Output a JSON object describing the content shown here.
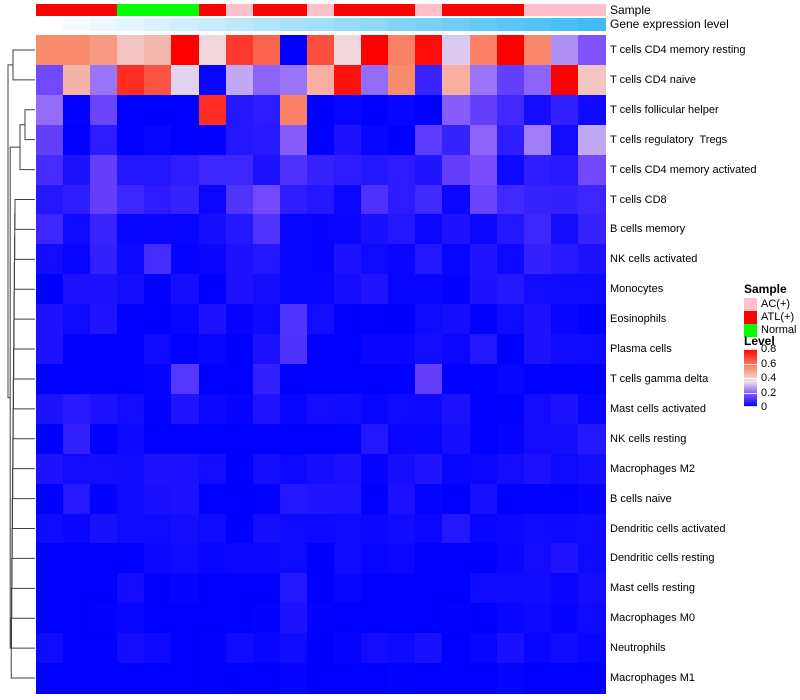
{
  "annotations": {
    "sample_label": "Sample",
    "gene_label": "Gene expression level",
    "sample_classes": [
      "ATL(+)",
      "ATL(+)",
      "ATL(+)",
      "Normal",
      "Normal",
      "Normal",
      "ATL(+)",
      "AC(+)",
      "ATL(+)",
      "ATL(+)",
      "AC(+)",
      "ATL(+)",
      "ATL(+)",
      "ATL(+)",
      "AC(+)",
      "ATL(+)",
      "ATL(+)",
      "ATL(+)",
      "AC(+)",
      "AC(+)",
      "AC(+)"
    ],
    "sample_colors": {
      "AC(+)": "#FFC0CB",
      "ATL(+)": "#FF0000",
      "Normal": "#00FF00"
    },
    "gene_gradient": {
      "start": "#FFFFFF",
      "end": "#41BCF2"
    }
  },
  "legend": {
    "sample": {
      "title": "Sample",
      "items": [
        {
          "label": "AC(+)",
          "color": "#FFC0CB"
        },
        {
          "label": "ATL(+)",
          "color": "#FF0000"
        },
        {
          "label": "Normal",
          "color": "#00FF00"
        }
      ]
    },
    "level": {
      "title": "Level",
      "ticks": [
        "0.8",
        "0.6",
        "0.4",
        "0.2",
        "0"
      ],
      "max": 0.8,
      "min": 0
    }
  },
  "chart_data": {
    "type": "heatmap",
    "columns": 21,
    "rows": [
      "T cells CD4 memory resting",
      "T cells CD4 naive",
      "T cells follicular helper",
      "T cells regulatory  Tregs",
      "T cells CD4 memory activated",
      "T cells CD8",
      "B cells memory",
      "NK cells activated",
      "Monocytes",
      "Eosinophils",
      "Plasma cells",
      "T cells gamma delta",
      "Mast cells activated",
      "NK cells resting",
      "Macrophages M2",
      "B cells naive",
      "Dendritic cells activated",
      "Dendritic cells resting",
      "Mast cells resting",
      "Macrophages M0",
      "Neutrophils",
      "Macrophages M1"
    ],
    "colormap": {
      "stops": [
        [
          0,
          "#0000FF"
        ],
        [
          0.175,
          "#7C4FFB"
        ],
        [
          0.35,
          "#EFE4EE"
        ],
        [
          0.55,
          "#FA8C6E"
        ],
        [
          0.8,
          "#FF0000"
        ]
      ]
    },
    "gene_expression_values": [
      0,
      0.05,
      0.1,
      0.15,
      0.2,
      0.25,
      0.3,
      0.35,
      0.4,
      0.45,
      0.5,
      0.55,
      0.6,
      0.65,
      0.7,
      0.75,
      0.8,
      0.85,
      0.9,
      0.95,
      1
    ],
    "matrix": [
      [
        0.55,
        0.55,
        0.52,
        0.42,
        0.45,
        0.8,
        0.38,
        0.7,
        0.62,
        0.0,
        0.66,
        0.38,
        0.8,
        0.57,
        0.78,
        0.32,
        0.57,
        0.8,
        0.56,
        0.25,
        0.18
      ],
      [
        0.16,
        0.46,
        0.22,
        0.72,
        0.65,
        0.33,
        0.01,
        0.28,
        0.2,
        0.22,
        0.47,
        0.77,
        0.21,
        0.55,
        0.08,
        0.47,
        0.22,
        0.14,
        0.2,
        0.8,
        0.42
      ],
      [
        0.21,
        0.005,
        0.15,
        0,
        0,
        0,
        0.72,
        0.05,
        0.06,
        0.57,
        0,
        0.01,
        0,
        0.01,
        0,
        0.19,
        0.14,
        0.09,
        0.03,
        0.07,
        0.02
      ],
      [
        0.14,
        0,
        0.06,
        0,
        0.01,
        0,
        0,
        0.05,
        0.055,
        0.19,
        0,
        0.04,
        0.01,
        0,
        0.13,
        0.075,
        0.2,
        0.065,
        0.23,
        0.025,
        0.28
      ],
      [
        0.1,
        0.04,
        0.14,
        0.05,
        0.05,
        0.065,
        0.085,
        0.085,
        0.04,
        0.11,
        0.075,
        0.06,
        0.05,
        0.06,
        0.045,
        0.14,
        0.17,
        0.02,
        0.065,
        0.055,
        0.16
      ],
      [
        0.05,
        0.065,
        0.14,
        0.085,
        0.06,
        0.075,
        0.015,
        0.115,
        0.16,
        0.065,
        0.05,
        0.015,
        0.11,
        0.06,
        0.09,
        0.015,
        0.15,
        0.09,
        0.075,
        0.07,
        0.085
      ],
      [
        0.085,
        0.02,
        0.08,
        0.01,
        0.012,
        0.01,
        0.03,
        0.05,
        0.115,
        0.01,
        0.008,
        0.012,
        0.035,
        0.05,
        0.015,
        0.04,
        0.015,
        0.05,
        0.085,
        0.03,
        0.075
      ],
      [
        0.025,
        0.01,
        0.07,
        0.018,
        0.1,
        0.006,
        0.012,
        0.04,
        0.05,
        0.01,
        0.008,
        0.04,
        0.02,
        0.012,
        0.05,
        0.01,
        0.045,
        0.018,
        0.07,
        0.055,
        0.04
      ],
      [
        0,
        0.04,
        0.04,
        0.03,
        0.005,
        0.03,
        0,
        0.04,
        0.03,
        0.01,
        0.01,
        0.03,
        0.045,
        0.01,
        0.01,
        0.005,
        0.04,
        0.05,
        0.025,
        0.02,
        0.02
      ],
      [
        0.04,
        0.02,
        0.045,
        0,
        0,
        0.01,
        0.04,
        0.008,
        0.018,
        0.115,
        0.025,
        0,
        0.003,
        0,
        0.02,
        0.03,
        0,
        0.02,
        0.04,
        0.01,
        0.005
      ],
      [
        0.04,
        0,
        0,
        0,
        0.02,
        0,
        0.01,
        0,
        0.04,
        0.11,
        0,
        0,
        0.012,
        0.012,
        0.027,
        0.015,
        0.05,
        0,
        0.04,
        0.022,
        0.02
      ],
      [
        0,
        0,
        0,
        0,
        0.008,
        0.12,
        0,
        0,
        0.07,
        0,
        0,
        0,
        0,
        0,
        0.14,
        0,
        0,
        0.01,
        0,
        0,
        0
      ],
      [
        0.04,
        0.055,
        0.04,
        0.025,
        0.005,
        0.045,
        0.015,
        0.008,
        0.045,
        0.01,
        0.025,
        0.022,
        0.01,
        0.02,
        0.018,
        0.04,
        0,
        0.003,
        0.025,
        0.04,
        0.01
      ],
      [
        0,
        0.07,
        0.003,
        0.018,
        0,
        0,
        0,
        0,
        0,
        0,
        0,
        0,
        0.05,
        0.012,
        0.01,
        0.03,
        0,
        0.008,
        0.025,
        0.03,
        0.05
      ],
      [
        0.04,
        0.025,
        0.025,
        0.022,
        0.04,
        0.038,
        0.025,
        0,
        0.03,
        0.018,
        0.03,
        0.038,
        0.008,
        0.028,
        0.045,
        0.01,
        0.015,
        0.025,
        0.038,
        0.02,
        0.028
      ],
      [
        0,
        0.052,
        0.005,
        0.02,
        0.035,
        0.04,
        0,
        0,
        0.003,
        0.05,
        0.045,
        0.043,
        0,
        0.038,
        0.006,
        0,
        0.033,
        0,
        0,
        0,
        0.008
      ],
      [
        0.02,
        0.012,
        0.035,
        0.02,
        0.02,
        0.03,
        0.02,
        0,
        0.028,
        0.02,
        0.018,
        0.02,
        0.015,
        0.022,
        0.015,
        0.05,
        0.01,
        0.015,
        0.02,
        0.018,
        0.022
      ],
      [
        0,
        0,
        0,
        0,
        0.015,
        0.02,
        0.01,
        0.015,
        0.015,
        0.02,
        0,
        0.02,
        0.01,
        0.015,
        0,
        0,
        0,
        0.012,
        0.025,
        0.045,
        0.02
      ],
      [
        0,
        0,
        0,
        0.025,
        0,
        0.008,
        0,
        0,
        0,
        0.05,
        0,
        0.01,
        0,
        0,
        0,
        0,
        0.02,
        0.02,
        0.022,
        0.012,
        0.03
      ],
      [
        0,
        0,
        0.005,
        0.01,
        0,
        0,
        0,
        0,
        0.005,
        0.04,
        0.005,
        0,
        0,
        0,
        0,
        0.005,
        0,
        0.01,
        0.018,
        0.008,
        0.02
      ],
      [
        0.02,
        0,
        0,
        0.025,
        0.018,
        0,
        0.005,
        0.02,
        0.01,
        0.022,
        0,
        0.008,
        0.025,
        0.018,
        0.035,
        0,
        0.01,
        0.035,
        0.01,
        0.022,
        0.01
      ],
      [
        0,
        0,
        0,
        0,
        0,
        0,
        0.005,
        0,
        0,
        0.008,
        0,
        0,
        0,
        0.005,
        0,
        0,
        0,
        0.008,
        0,
        0,
        0
      ]
    ],
    "dendrogram": {
      "merges": [
        [
          "L0",
          "L1",
          13
        ],
        [
          "L2",
          "L3",
          25
        ],
        [
          "M1",
          "L4",
          20
        ],
        [
          "L5",
          "L6",
          15
        ],
        [
          "M3",
          "L7",
          14.75
        ],
        [
          "M4",
          "L8",
          14.5
        ],
        [
          "M5",
          "L9",
          14.25
        ],
        [
          "M6",
          "L10",
          14
        ],
        [
          "M7",
          "L11",
          13.75
        ],
        [
          "M8",
          "L12",
          13.5
        ],
        [
          "M9",
          "L13",
          13.25
        ],
        [
          "M10",
          "L14",
          13
        ],
        [
          "M11",
          "L15",
          12.75
        ],
        [
          "M12",
          "L16",
          12.5
        ],
        [
          "M13",
          "L17",
          12.25
        ],
        [
          "M14",
          "L18",
          12
        ],
        [
          "M15",
          "L19",
          11.75
        ],
        [
          "M16",
          "L20",
          11.5
        ],
        [
          "M17",
          "L21",
          11.25
        ],
        [
          "M2",
          "M18",
          10.2
        ],
        [
          "M0",
          "M19",
          8
        ]
      ]
    }
  }
}
